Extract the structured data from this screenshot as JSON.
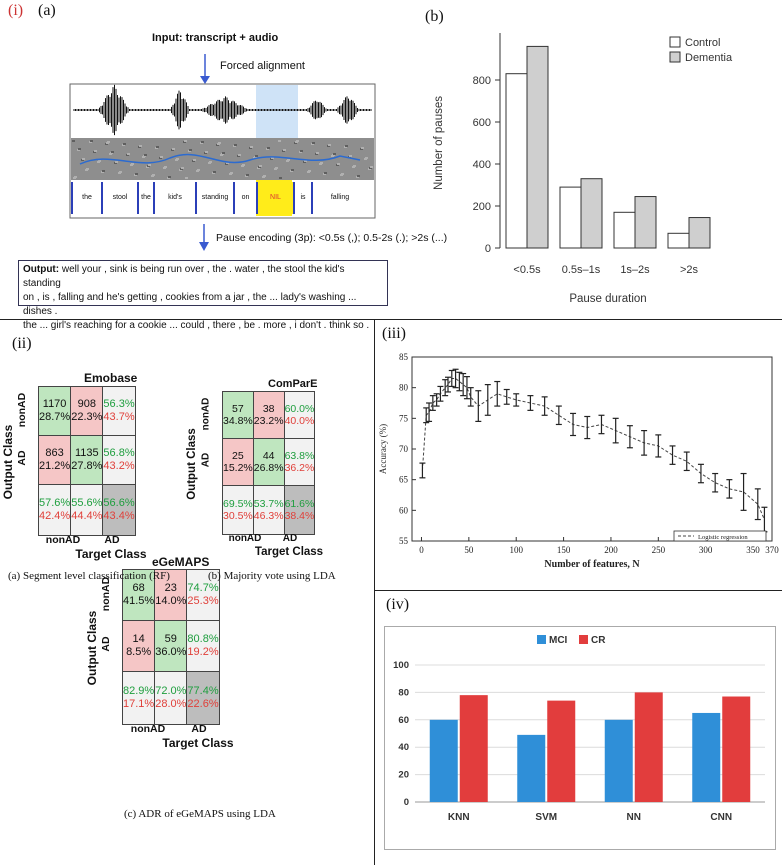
{
  "labels": {
    "i": "(i)",
    "a": "(a)",
    "b": "(b)",
    "ii": "(ii)",
    "iii": "(iii)",
    "iv": "(iv)"
  },
  "alignment": {
    "input": "Input: transcript + audio",
    "forced": "Forced alignment",
    "words": [
      "the",
      "stool",
      "the",
      "kid's",
      "standing",
      "on",
      "NIL",
      "is",
      "falling"
    ],
    "pause_encoding": "Pause encoding (3p): <0.5s (,); 0.5-2s (.); >2s (...)",
    "output_label": "Output:",
    "output_lines": [
      " well your , sink is being run over , the . water , the stool the kid's standing",
      "on , is , falling and he's getting , cookies from a jar , the ... lady's washing ... dishes .",
      "the ... girl's reaching for a cookie ... could , there , be . more , i don't . think so ."
    ]
  },
  "confusion": {
    "emobase": {
      "title": "Emobase",
      "caption": "(a) Segment level classification (RF)",
      "cells": [
        [
          "1170",
          "28.7%",
          "908",
          "22.3%",
          "56.3%",
          "43.7%"
        ],
        [
          "863",
          "21.2%",
          "1135",
          "27.8%",
          "56.8%",
          "43.2%"
        ],
        [
          "57.6%",
          "42.4%",
          "55.6%",
          "44.4%",
          "56.6%",
          "43.4%"
        ]
      ]
    },
    "compare": {
      "title": "ComParE",
      "caption": "(b) Majority vote using LDA",
      "cells": [
        [
          "57",
          "34.8%",
          "38",
          "23.2%",
          "60.0%",
          "40.0%"
        ],
        [
          "25",
          "15.2%",
          "44",
          "26.8%",
          "63.8%",
          "36.2%"
        ],
        [
          "69.5%",
          "30.5%",
          "53.7%",
          "46.3%",
          "61.6%",
          "38.4%"
        ]
      ]
    },
    "egemaps": {
      "title": "eGeMAPS",
      "caption": "(c) ADR of eGeMAPS using LDA",
      "cells": [
        [
          "68",
          "41.5%",
          "23",
          "14.0%",
          "74.7%",
          "25.3%"
        ],
        [
          "14",
          "8.5%",
          "59",
          "36.0%",
          "80.8%",
          "19.2%"
        ],
        [
          "82.9%",
          "17.1%",
          "72.0%",
          "28.0%",
          "77.4%",
          "22.6%"
        ]
      ]
    },
    "ylabel": "Output Class",
    "xlabel": "Target Class",
    "row_labels": [
      "nonAD",
      "AD"
    ],
    "col_labels": [
      "nonAD",
      "AD"
    ]
  },
  "chart_data": [
    {
      "type": "bar",
      "categories": [
        "<0.5s",
        "0.5s–1s",
        "1s–2s",
        ">2s"
      ],
      "series": [
        {
          "name": "Control",
          "values": [
            830,
            290,
            170,
            70
          ]
        },
        {
          "name": "Dementia",
          "values": [
            960,
            330,
            245,
            145
          ]
        }
      ],
      "title": "",
      "xlabel": "Pause duration",
      "ylabel": "Number of pauses",
      "ylim": [
        0,
        1000
      ],
      "yticks": [
        0,
        200,
        400,
        600,
        800
      ],
      "colors": [
        "#ffffff",
        "#cfcfcf"
      ]
    },
    {
      "type": "line",
      "title": "",
      "xlabel": "Number of features, N",
      "ylabel": "Accuracy (%)",
      "xlim": [
        -10,
        370
      ],
      "ylim": [
        55,
        85
      ],
      "xticks": [
        0,
        50,
        100,
        150,
        200,
        250,
        300,
        350,
        370
      ],
      "yticks": [
        55,
        60,
        65,
        70,
        75,
        80,
        85
      ],
      "legend": "Logistic regression",
      "x": [
        1,
        5,
        8,
        12,
        16,
        20,
        25,
        28,
        32,
        36,
        40,
        44,
        48,
        52,
        60,
        70,
        80,
        90,
        100,
        115,
        130,
        145,
        160,
        175,
        190,
        205,
        220,
        235,
        250,
        265,
        280,
        295,
        310,
        325,
        340,
        355,
        362
      ],
      "y": [
        66.5,
        75.5,
        76,
        77.5,
        78,
        79,
        80,
        80.5,
        81.5,
        81.5,
        81,
        80.5,
        80,
        78.5,
        77,
        78,
        79,
        78.5,
        78,
        77.5,
        77,
        75.5,
        74,
        73.5,
        74,
        73,
        72,
        71,
        70.5,
        69,
        68,
        66,
        64.5,
        63.5,
        63,
        61,
        58.5
      ],
      "err": [
        1.2,
        1.2,
        1.5,
        1.2,
        1,
        1.2,
        1.3,
        1.2,
        1.3,
        1.5,
        1.5,
        1.8,
        1.8,
        1.5,
        2.5,
        2.5,
        2,
        1.2,
        1,
        1.2,
        1.5,
        1.5,
        1.8,
        1.8,
        1.5,
        2,
        1.8,
        2,
        1.8,
        1.5,
        1.5,
        1.5,
        1.5,
        1.5,
        3,
        2.5,
        2
      ]
    },
    {
      "type": "bar",
      "categories": [
        "KNN",
        "SVM",
        "NN",
        "CNN"
      ],
      "series": [
        {
          "name": "MCI",
          "values": [
            60,
            49,
            60,
            65
          ]
        },
        {
          "name": "CR",
          "values": [
            78,
            74,
            80,
            77
          ]
        }
      ],
      "title": "",
      "xlabel": "",
      "ylabel": "",
      "ylim": [
        0,
        100
      ],
      "yticks": [
        0,
        20,
        40,
        60,
        80,
        100
      ],
      "colors": [
        "#2f8fd8",
        "#e23d3d"
      ]
    }
  ]
}
